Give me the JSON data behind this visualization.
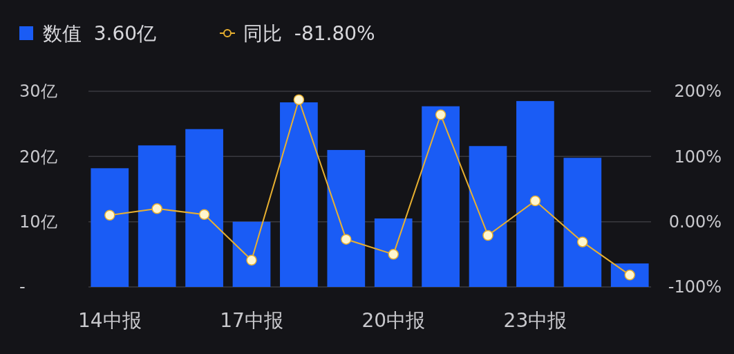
{
  "chart_data": {
    "type": "bar",
    "categories": [
      "14中报",
      null,
      null,
      "17中报",
      null,
      null,
      "20中报",
      null,
      null,
      "23中报",
      null,
      null
    ],
    "series": [
      {
        "name": "数值  3.60亿",
        "color": "#1a5cf5",
        "values": [
          18.2,
          21.7,
          24.2,
          10.0,
          28.3,
          21.0,
          10.5,
          27.7,
          21.6,
          28.5,
          19.8,
          3.6
        ]
      },
      {
        "name": "同比  -81.80%",
        "type": "line",
        "axis": "y2",
        "color": "#e8b030",
        "values": [
          10,
          20,
          11,
          -59,
          187,
          -27,
          -50,
          164,
          -21,
          32,
          -31,
          -81.8
        ]
      }
    ],
    "ylim": [
      0,
      30
    ],
    "yticks": [
      {
        "value": 0,
        "label": "-"
      },
      {
        "value": 10,
        "label": "10亿"
      },
      {
        "value": 20,
        "label": "20亿"
      },
      {
        "value": 30,
        "label": "30亿"
      }
    ],
    "y2lim": [
      -100,
      200
    ],
    "y2ticks": [
      {
        "value": -100,
        "label": "-100%"
      },
      {
        "value": 0,
        "label": "0.00%"
      },
      {
        "value": 100,
        "label": "100%"
      },
      {
        "value": 200,
        "label": "200%"
      }
    ],
    "grid": "y",
    "legend": "top left",
    "marker": "circle",
    "line_style": "solid"
  }
}
